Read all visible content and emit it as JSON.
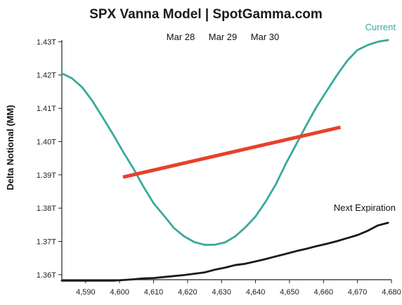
{
  "chart_data": {
    "type": "line",
    "title": "SPX Vanna Model | SpotGamma.com",
    "annotations": [
      "Mar 28",
      "Mar 29",
      "Mar 30"
    ],
    "xlabel": "",
    "ylabel": "Delta Notional (MM)",
    "xlim": [
      4583,
      4680
    ],
    "ylim": [
      1.3585,
      1.4305
    ],
    "x_ticks": [
      4590,
      4600,
      4610,
      4620,
      4630,
      4640,
      4650,
      4660,
      4670,
      4680
    ],
    "x_tick_labels": [
      "4,590",
      "4,600",
      "4,610",
      "4,620",
      "4,630",
      "4,640",
      "4,650",
      "4,660",
      "4,670",
      "4,680"
    ],
    "y_ticks": [
      1.36,
      1.37,
      1.38,
      1.39,
      1.4,
      1.41,
      1.42,
      1.43
    ],
    "y_tick_labels": [
      "1.36T",
      "1.37T",
      "1.38T",
      "1.39T",
      "1.40T",
      "1.41T",
      "1.42T",
      "1.43T"
    ],
    "grid": false,
    "series": [
      {
        "name": "Current",
        "color": "#3aa99b",
        "x": [
          4583,
          4586,
          4589,
          4592,
          4595,
          4598,
          4601,
          4604,
          4607,
          4610,
          4613,
          4616,
          4619,
          4622,
          4625,
          4628,
          4631,
          4634,
          4637,
          4640,
          4643,
          4646,
          4649,
          4652,
          4655,
          4658,
          4661,
          4664,
          4667,
          4670,
          4673,
          4676,
          4679
        ],
        "values": [
          1.4205,
          1.419,
          1.4163,
          1.4122,
          1.4073,
          1.4023,
          1.397,
          1.392,
          1.3865,
          1.3815,
          1.3778,
          1.374,
          1.3715,
          1.3698,
          1.369,
          1.369,
          1.3697,
          1.3715,
          1.3742,
          1.3775,
          1.382,
          1.3872,
          1.3935,
          1.3992,
          1.405,
          1.4105,
          1.4153,
          1.42,
          1.4243,
          1.4275,
          1.429,
          1.43,
          1.4305
        ]
      },
      {
        "name": "",
        "color": "#e8412a",
        "x": [
          4601,
          4665
        ],
        "values": [
          1.3893,
          1.4043
        ]
      },
      {
        "name": "Next Expiration",
        "color": "#1a1a1a",
        "x": [
          4583,
          4588,
          4593,
          4598,
          4601,
          4604,
          4607,
          4610,
          4613,
          4616,
          4619,
          4622,
          4625,
          4628,
          4631,
          4634,
          4637,
          4640,
          4643,
          4646,
          4649,
          4652,
          4655,
          4658,
          4661,
          4664,
          4667,
          4670,
          4673,
          4676,
          4679
        ],
        "values": [
          1.3582,
          1.3582,
          1.3582,
          1.3582,
          1.3584,
          1.3586,
          1.3589,
          1.359,
          1.3593,
          1.3596,
          1.3599,
          1.3603,
          1.3607,
          1.3615,
          1.3621,
          1.3629,
          1.3633,
          1.364,
          1.3647,
          1.3655,
          1.3663,
          1.3671,
          1.3678,
          1.3686,
          1.3693,
          1.3701,
          1.371,
          1.3719,
          1.3732,
          1.3748,
          1.3756
        ]
      }
    ]
  }
}
